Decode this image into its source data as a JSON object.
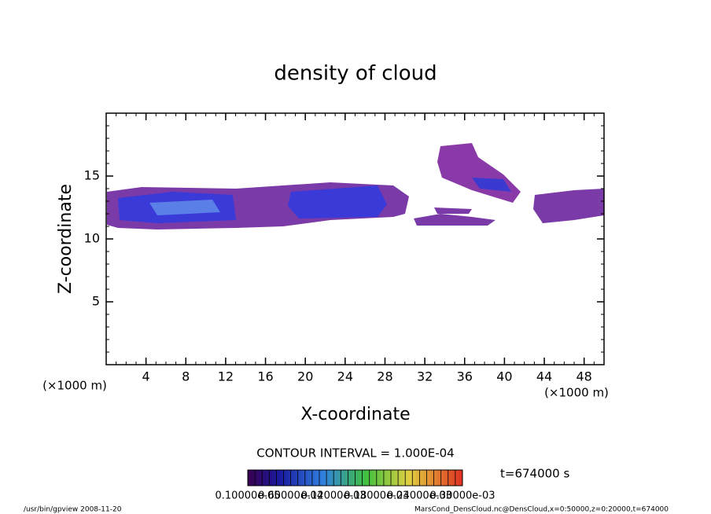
{
  "chart_data": {
    "type": "contour",
    "title": "density of cloud",
    "x_label": "X-coordinate",
    "y_label": "Z-coordinate",
    "x_unit": "(×1000 m)",
    "y_unit": "(×1000 m)",
    "xlim": [
      0,
      50
    ],
    "xticks": [
      4,
      8,
      12,
      16,
      20,
      24,
      28,
      32,
      36,
      40,
      44,
      48
    ],
    "ylim": [
      0,
      20
    ],
    "yticks": [
      5,
      10,
      15
    ],
    "contour_interval": "CONTOUR INTERVAL = 1.000E-04",
    "time": "t=674000 s",
    "colorbar_labels": [
      "0.10000e-05",
      "0.60000e-04",
      "0.12000e-03",
      "0.18000e-03",
      "0.24000e-03",
      "0.30000e-03"
    ],
    "footer_left": "/usr/bin/gpview  2008-11-20",
    "footer_right": "MarsCond_DensCloud.nc@DensCloud,x=0:50000,z=0:20000,t=674000"
  }
}
